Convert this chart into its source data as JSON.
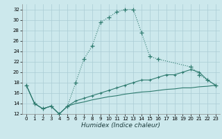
{
  "xlabel": "Humidex (Indice chaleur)",
  "ylabel": "",
  "background_color": "#cce8ec",
  "grid_color": "#aaccd4",
  "line_color": "#2d7a6e",
  "xlim": [
    -0.5,
    23.5
  ],
  "ylim": [
    12,
    33
  ],
  "xticks": [
    0,
    1,
    2,
    3,
    4,
    5,
    6,
    7,
    8,
    9,
    10,
    11,
    12,
    13,
    14,
    15,
    16,
    17,
    18,
    19,
    20,
    21,
    22,
    23
  ],
  "yticks": [
    12,
    14,
    16,
    18,
    20,
    22,
    24,
    26,
    28,
    30,
    32
  ],
  "series1_x": [
    0,
    1,
    2,
    3,
    4,
    5,
    6,
    7,
    8,
    9,
    10,
    11,
    12,
    13,
    14,
    15,
    16,
    20,
    21,
    22,
    23
  ],
  "series1_y": [
    17.5,
    14.0,
    13.0,
    13.5,
    12.0,
    13.5,
    18.0,
    22.5,
    25.0,
    29.5,
    30.5,
    31.5,
    32.0,
    32.0,
    27.5,
    23.0,
    22.5,
    21.0,
    19.5,
    18.5,
    17.5
  ],
  "series2_x": [
    0,
    1,
    2,
    3,
    4,
    5,
    6,
    7,
    8,
    9,
    10,
    11,
    12,
    13,
    14,
    15,
    16,
    17,
    18,
    19,
    20,
    21,
    22,
    23
  ],
  "series2_y": [
    17.5,
    14.0,
    13.0,
    13.5,
    12.0,
    13.5,
    14.5,
    15.0,
    15.5,
    16.0,
    16.5,
    17.0,
    17.5,
    18.0,
    18.5,
    18.5,
    19.0,
    19.5,
    19.5,
    20.0,
    20.5,
    20.0,
    18.5,
    17.5
  ],
  "series3_x": [
    0,
    1,
    2,
    3,
    4,
    5,
    6,
    7,
    8,
    9,
    10,
    11,
    12,
    13,
    14,
    15,
    16,
    17,
    18,
    19,
    20,
    21,
    22,
    23
  ],
  "series3_y": [
    17.5,
    14.0,
    13.0,
    13.5,
    12.0,
    13.5,
    14.0,
    14.3,
    14.7,
    15.0,
    15.3,
    15.5,
    15.8,
    16.0,
    16.2,
    16.3,
    16.5,
    16.7,
    16.8,
    17.0,
    17.0,
    17.2,
    17.3,
    17.5
  ]
}
